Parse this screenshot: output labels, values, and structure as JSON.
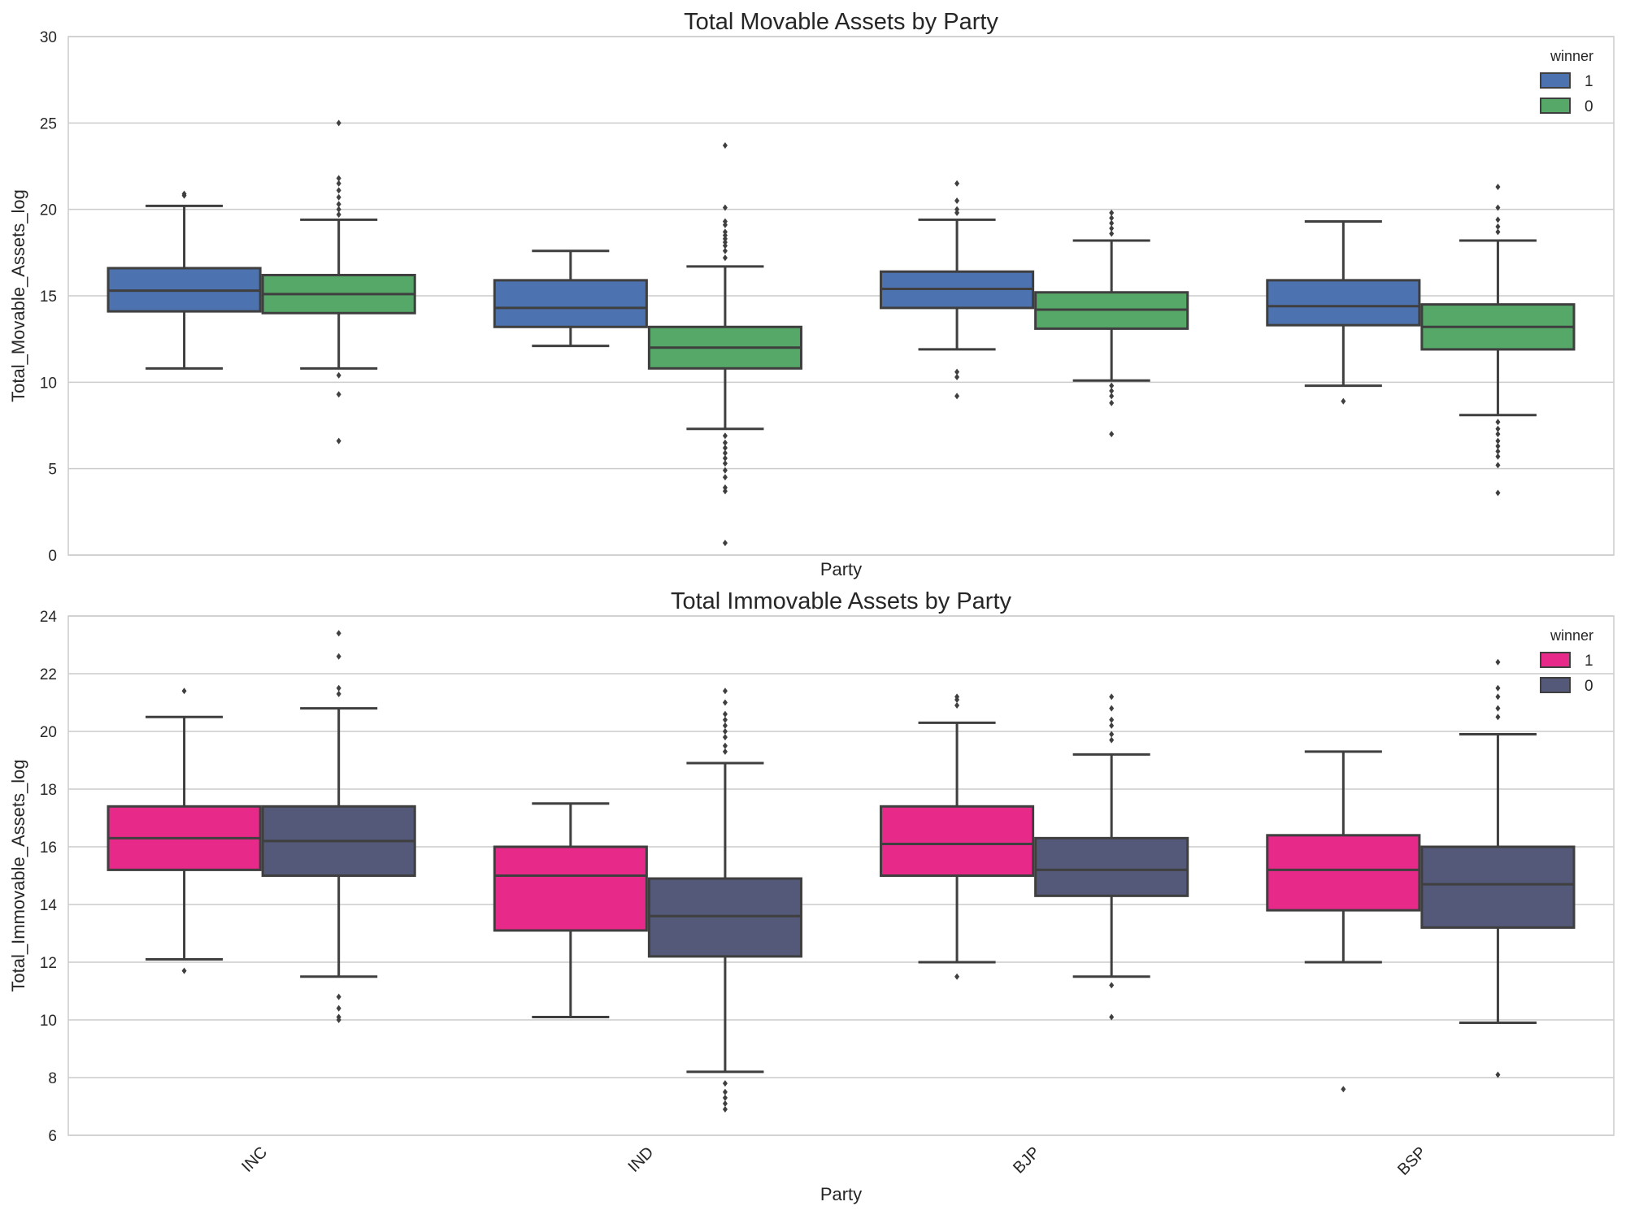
{
  "chart_data": [
    {
      "type": "box",
      "title": "Total Movable Assets by Party",
      "xlabel": "Party",
      "ylabel": "Total_Movable_Assets_log",
      "ylim": [
        0,
        30
      ],
      "yticks": [
        "0",
        "5",
        "10",
        "15",
        "20",
        "25",
        "30"
      ],
      "grid": true,
      "legend": {
        "title": "winner",
        "placement": "top-right"
      },
      "categories": [
        "INC",
        "IND",
        "BJP",
        "BSP"
      ],
      "series": [
        {
          "name": "1",
          "color": "#4c72b0",
          "boxes": [
            {
              "whisker_low": 10.8,
              "q1": 14.1,
              "median": 15.3,
              "q3": 16.6,
              "whisker_high": 20.2,
              "outliers": [
                20.8,
                20.9
              ]
            },
            {
              "whisker_low": 12.1,
              "q1": 13.2,
              "median": 14.3,
              "q3": 15.9,
              "whisker_high": 17.6,
              "outliers": []
            },
            {
              "whisker_low": 11.9,
              "q1": 14.3,
              "median": 15.4,
              "q3": 16.4,
              "whisker_high": 19.4,
              "outliers": [
                19.8,
                20.0,
                20.5,
                21.5,
                10.6,
                10.3,
                9.2
              ]
            },
            {
              "whisker_low": 9.8,
              "q1": 13.3,
              "median": 14.4,
              "q3": 15.9,
              "whisker_high": 19.3,
              "outliers": [
                8.9
              ]
            }
          ]
        },
        {
          "name": "0",
          "color": "#55a868",
          "boxes": [
            {
              "whisker_low": 10.8,
              "q1": 14.0,
              "median": 15.1,
              "q3": 16.2,
              "whisker_high": 19.4,
              "outliers": [
                19.7,
                20.0,
                20.3,
                20.7,
                21.1,
                21.5,
                21.8,
                25.0,
                10.4,
                9.3,
                6.6
              ]
            },
            {
              "whisker_low": 7.3,
              "q1": 10.8,
              "median": 12.0,
              "q3": 13.2,
              "whisker_high": 16.7,
              "outliers": [
                17.2,
                17.6,
                17.9,
                18.1,
                18.3,
                18.5,
                18.7,
                19.1,
                19.3,
                20.1,
                23.7,
                6.9,
                6.5,
                6.2,
                5.9,
                5.6,
                5.3,
                4.9,
                4.5,
                3.9,
                3.7,
                0.7
              ]
            },
            {
              "whisker_low": 10.1,
              "q1": 13.1,
              "median": 14.2,
              "q3": 15.2,
              "whisker_high": 18.2,
              "outliers": [
                18.6,
                18.9,
                19.2,
                19.5,
                19.8,
                9.8,
                9.5,
                9.2,
                8.8,
                7.0
              ]
            },
            {
              "whisker_low": 8.1,
              "q1": 11.9,
              "median": 13.2,
              "q3": 14.5,
              "whisker_high": 18.2,
              "outliers": [
                18.7,
                19.0,
                19.4,
                20.1,
                21.3,
                7.7,
                7.3,
                7.0,
                6.6,
                6.3,
                6.0,
                5.7,
                5.2,
                3.6
              ]
            }
          ]
        }
      ]
    },
    {
      "type": "box",
      "title": "Total Immovable Assets by Party",
      "xlabel": "Party",
      "ylabel": "Total_Immovable_Assets_log",
      "ylim": [
        6,
        24
      ],
      "yticks": [
        "6",
        "8",
        "10",
        "12",
        "14",
        "16",
        "18",
        "20",
        "22",
        "24"
      ],
      "grid": true,
      "legend": {
        "title": "winner",
        "placement": "top-right"
      },
      "categories": [
        "INC",
        "IND",
        "BJP",
        "BSP"
      ],
      "series": [
        {
          "name": "1",
          "color": "#e7298a",
          "boxes": [
            {
              "whisker_low": 12.1,
              "q1": 15.2,
              "median": 16.3,
              "q3": 17.4,
              "whisker_high": 20.5,
              "outliers": [
                21.4,
                11.7
              ]
            },
            {
              "whisker_low": 10.1,
              "q1": 13.1,
              "median": 15.0,
              "q3": 16.0,
              "whisker_high": 17.5,
              "outliers": []
            },
            {
              "whisker_low": 12.0,
              "q1": 15.0,
              "median": 16.1,
              "q3": 17.4,
              "whisker_high": 20.3,
              "outliers": [
                20.9,
                21.1,
                21.2,
                11.5
              ]
            },
            {
              "whisker_low": 12.0,
              "q1": 13.8,
              "median": 15.2,
              "q3": 16.4,
              "whisker_high": 19.3,
              "outliers": [
                7.6
              ]
            }
          ]
        },
        {
          "name": "0",
          "color": "#545879",
          "boxes": [
            {
              "whisker_low": 11.5,
              "q1": 15.0,
              "median": 16.2,
              "q3": 17.4,
              "whisker_high": 20.8,
              "outliers": [
                21.3,
                21.5,
                22.6,
                23.4,
                10.8,
                10.4,
                10.1,
                10.0
              ]
            },
            {
              "whisker_low": 8.2,
              "q1": 12.2,
              "median": 13.6,
              "q3": 14.9,
              "whisker_high": 18.9,
              "outliers": [
                19.3,
                19.5,
                19.8,
                20.0,
                20.2,
                20.4,
                20.6,
                21.0,
                21.4,
                7.8,
                7.5,
                7.3,
                7.1,
                6.9
              ]
            },
            {
              "whisker_low": 11.5,
              "q1": 14.3,
              "median": 15.2,
              "q3": 16.3,
              "whisker_high": 19.2,
              "outliers": [
                19.7,
                19.9,
                20.2,
                20.4,
                20.8,
                21.2,
                11.2,
                10.1
              ]
            },
            {
              "whisker_low": 9.9,
              "q1": 13.2,
              "median": 14.7,
              "q3": 16.0,
              "whisker_high": 19.9,
              "outliers": [
                20.5,
                20.8,
                21.2,
                21.5,
                22.4,
                8.1
              ]
            }
          ]
        }
      ]
    }
  ]
}
